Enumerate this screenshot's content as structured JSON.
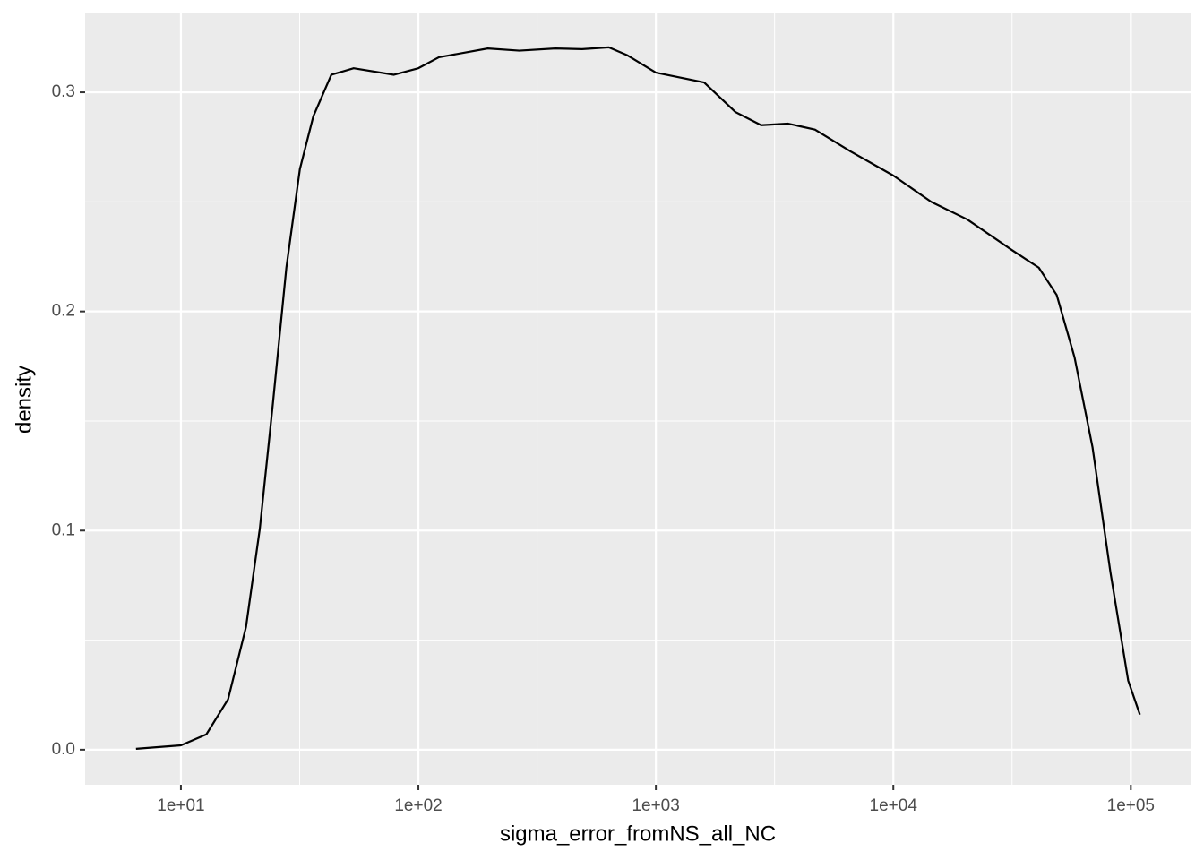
{
  "chart_data": {
    "type": "line",
    "xlabel": "sigma_error_fromNS_all_NC",
    "ylabel": "density",
    "xscale": "log",
    "grid": true,
    "color": "#000000",
    "x": [
      6.47,
      10,
      12.8,
      15.8,
      18.8,
      21.5,
      24.4,
      27.8,
      31.7,
      36.1,
      43,
      53.4,
      78.9,
      100,
      122,
      196,
      266,
      377,
      489,
      634,
      755,
      1000,
      1285,
      1597,
      2163,
      2775,
      3606,
      4677,
      6610,
      10000,
      14450,
      20470,
      31600,
      40970,
      48750,
      57970,
      68990,
      82060,
      97500,
      109200
    ],
    "values": [
      0.0004,
      0.002,
      0.007,
      0.023,
      0.056,
      0.101,
      0.158,
      0.22,
      0.265,
      0.289,
      0.308,
      0.311,
      0.308,
      0.311,
      0.316,
      0.32,
      0.319,
      0.32,
      0.3197,
      0.3205,
      0.317,
      0.309,
      0.3066,
      0.3045,
      0.291,
      0.285,
      0.2857,
      0.283,
      0.273,
      0.262,
      0.25,
      0.242,
      0.228,
      0.22,
      0.2075,
      0.179,
      0.138,
      0.081,
      0.0315,
      0.016
    ],
    "xlim": [
      3.95,
      180000
    ],
    "ylim": [
      -0.016,
      0.336
    ],
    "xticks": [
      {
        "value": 10,
        "label": "1e+01"
      },
      {
        "value": 100,
        "label": "1e+02"
      },
      {
        "value": 1000,
        "label": "1e+03"
      },
      {
        "value": 10000,
        "label": "1e+04"
      },
      {
        "value": 100000,
        "label": "1e+05"
      }
    ],
    "yticks": [
      {
        "value": 0,
        "label": "0.0"
      },
      0.1,
      0.2,
      0.3
    ]
  }
}
